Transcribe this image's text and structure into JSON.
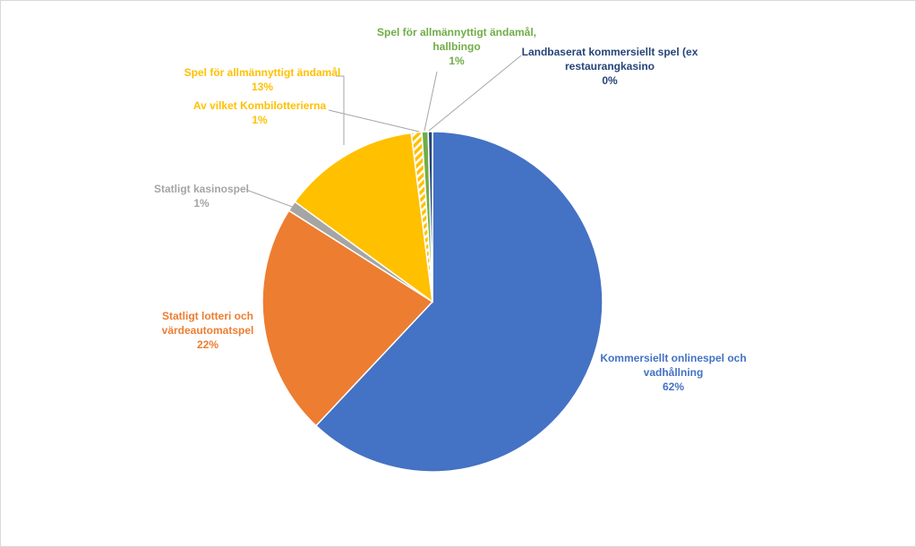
{
  "chart_data": {
    "type": "pie",
    "title": "",
    "slices": [
      {
        "label_lines": [
          "Kommersiellt onlinespel och",
          "vadhållning"
        ],
        "value": 62,
        "pct_label": "62%",
        "color": "#4472C4",
        "pattern": "solid"
      },
      {
        "label_lines": [
          "Statligt lotteri och",
          "värdeautomatspel"
        ],
        "value": 22,
        "pct_label": "22%",
        "color": "#ED7D31",
        "pattern": "solid"
      },
      {
        "label_lines": [
          "Statligt kasinospel"
        ],
        "value": 1,
        "pct_label": "1%",
        "color": "#A5A5A5",
        "pattern": "solid"
      },
      {
        "label_lines": [
          "Spel för allmännyttigt ändamål"
        ],
        "value": 13,
        "pct_label": "13%",
        "color": "#FFC000",
        "pattern": "solid"
      },
      {
        "label_lines": [
          "Av vilket Kombilotterierna"
        ],
        "value": 1,
        "pct_label": "1%",
        "color": "#FFC000",
        "pattern": "striped"
      },
      {
        "label_lines": [
          "Spel för allmännyttigt ändamål,",
          "hallbingo"
        ],
        "value": 0.6,
        "pct_label": "1%",
        "color": "#70AD47",
        "pattern": "solid"
      },
      {
        "label_lines": [
          "Landbaserat kommersiellt spel (ex",
          "restaurangkasino"
        ],
        "value": 0.4,
        "pct_label": "0%",
        "color": "#264478",
        "pattern": "solid"
      }
    ],
    "label_colors": [
      "#4472C4",
      "#ED7D31",
      "#A5A5A5",
      "#FFC000",
      "#FFC000",
      "#70AD47",
      "#264478"
    ]
  }
}
